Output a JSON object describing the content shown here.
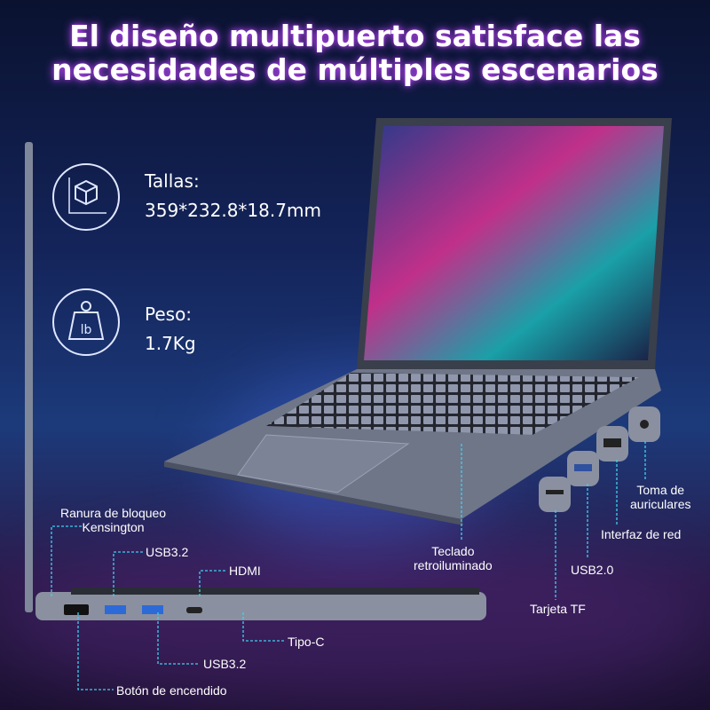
{
  "title": {
    "line1": "El diseño multipuerto satisface las",
    "line2": "necesidades de múltiples escenarios"
  },
  "specs": [
    {
      "icon": "cube-dimensions-icon",
      "label": "Tallas:",
      "value": "359*232.8*18.7mm"
    },
    {
      "icon": "weight-lb-icon",
      "label": "Peso:",
      "value": "1.7Kg",
      "icon_text": "lb"
    }
  ],
  "ports": {
    "kensington": {
      "line1": "Ranura de bloqueo",
      "line2": "Kensington"
    },
    "usb32_top": "USB3.2",
    "hdmi": "HDMI",
    "tipo_c": "Tipo-C",
    "usb32_bottom": "USB3.2",
    "power": "Botón de encendido",
    "keyboard": {
      "line1": "Teclado",
      "line2": "retroiluminado"
    },
    "tf": "Tarjeta TF",
    "usb20": "USB2.0",
    "ethernet": "Interfaz de red",
    "audio": {
      "line1": "Toma de",
      "line2": "auriculares"
    }
  },
  "colors": {
    "accent_line": "#3fd0f0",
    "title_glow": "#c050ff"
  }
}
